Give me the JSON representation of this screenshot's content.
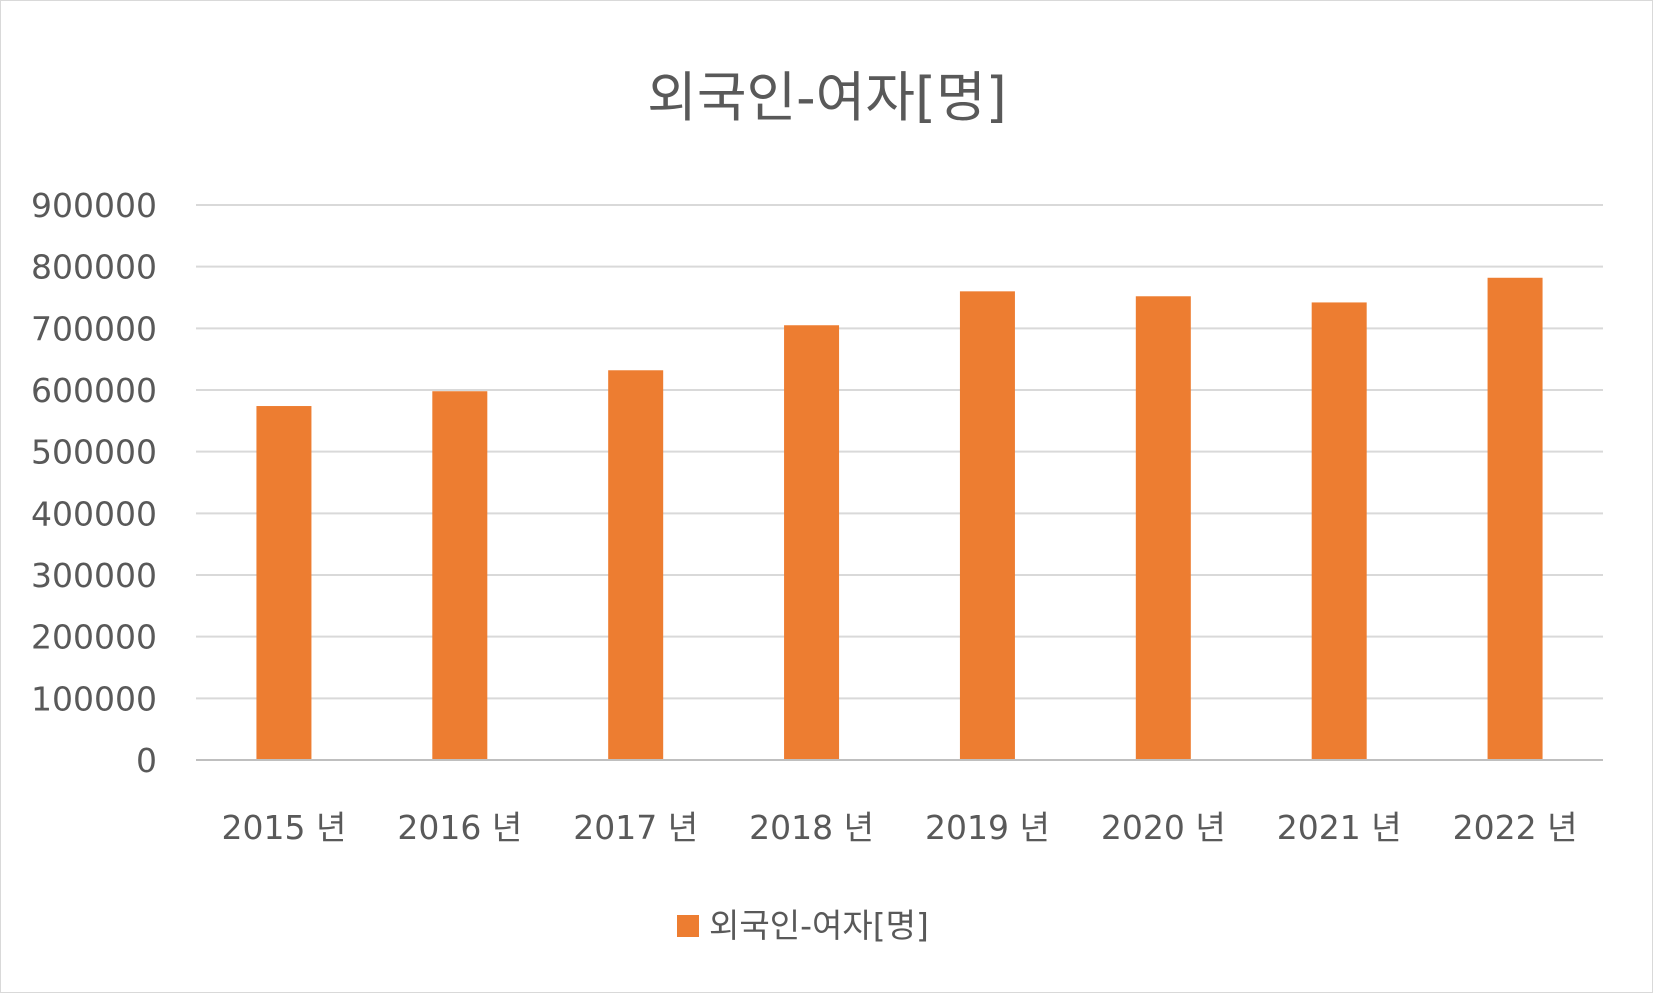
{
  "chart_data": {
    "type": "bar",
    "title": "외국인-여자[명]",
    "categories": [
      "2015 년",
      "2016 년",
      "2017 년",
      "2018 년",
      "2019 년",
      "2020 년",
      "2021 년",
      "2022 년"
    ],
    "series": [
      {
        "name": "외국인-여자[명]",
        "color": "#ed7d31",
        "values": [
          574000,
          598000,
          632000,
          705000,
          760000,
          752000,
          742000,
          782000
        ]
      }
    ],
    "yticks": [
      "0",
      "100000",
      "200000",
      "300000",
      "400000",
      "500000",
      "600000",
      "700000",
      "800000",
      "900000"
    ],
    "ylim": [
      0,
      900000
    ],
    "xlabel": "",
    "ylabel": "",
    "grid": true,
    "legend_position": "bottom"
  }
}
